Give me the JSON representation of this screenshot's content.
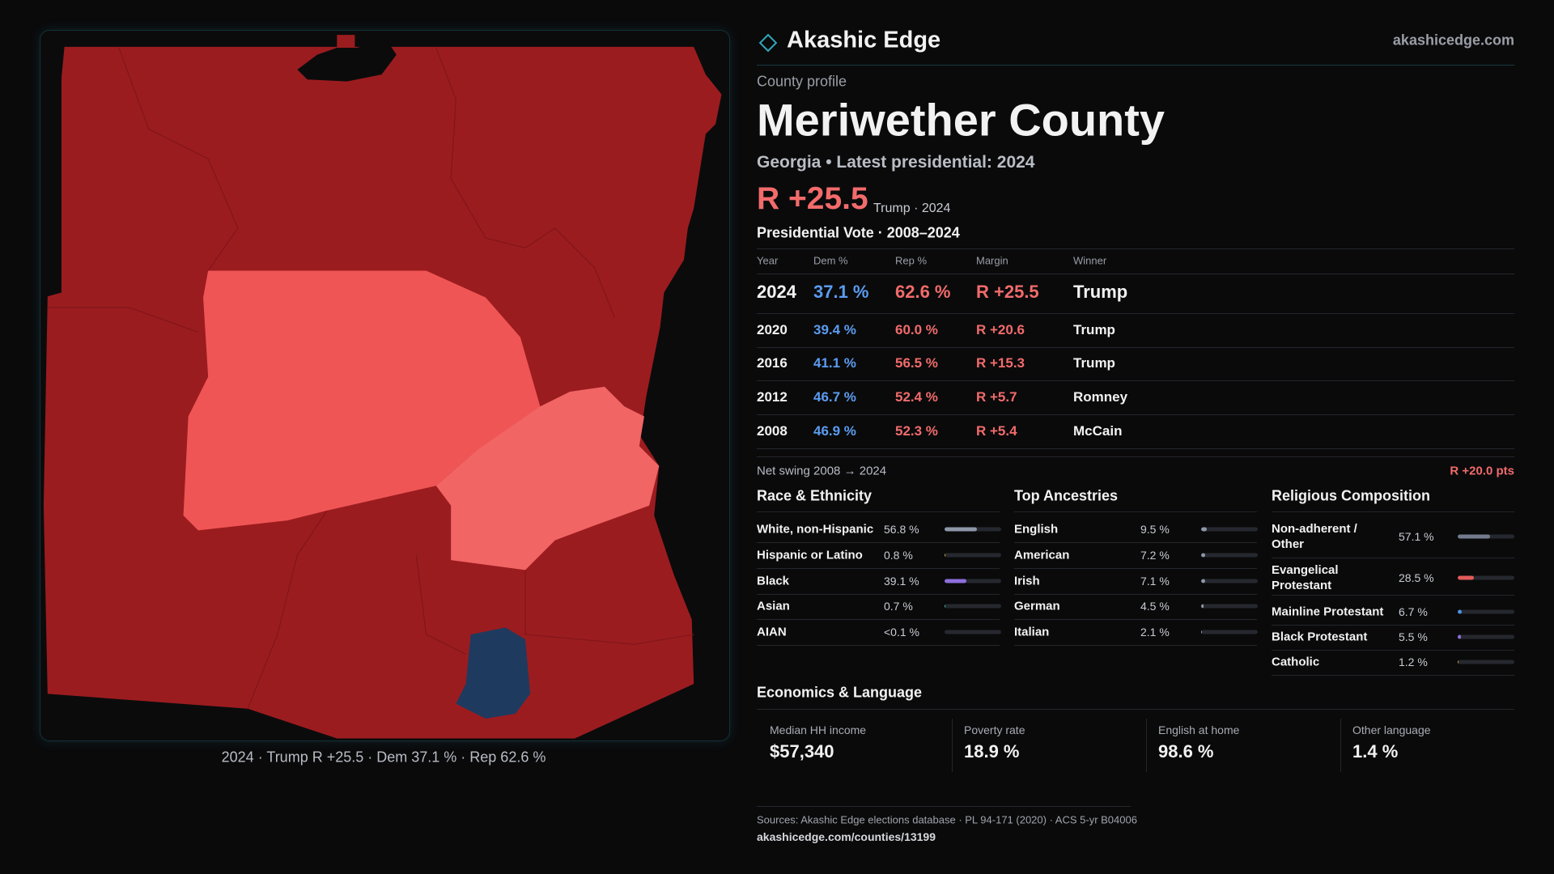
{
  "header": {
    "brand": "Akashic Edge",
    "site": "akashicedge.com"
  },
  "profile": {
    "kicker": "County profile",
    "name": "Meriwether County",
    "subtitle": "Georgia • Latest presidential: 2024",
    "margin": "R +25.5",
    "margin_note": "Trump · 2024"
  },
  "map": {
    "caption": "2024 · Trump R +25.5 · Dem 37.1 % · Rep 62.6 %"
  },
  "vote_table": {
    "title": "Presidential Vote · 2008–2024",
    "columns": [
      "Year",
      "Dem %",
      "Rep %",
      "Margin",
      "Winner"
    ],
    "rows": [
      [
        "2024",
        "37.1 %",
        "62.6 %",
        "R +25.5",
        "Trump"
      ],
      [
        "2020",
        "39.4 %",
        "60.0 %",
        "R +20.6",
        "Trump"
      ],
      [
        "2016",
        "41.1 %",
        "56.5 %",
        "R +15.3",
        "Trump"
      ],
      [
        "2012",
        "46.7 %",
        "52.4 %",
        "R +5.7",
        "Romney"
      ],
      [
        "2008",
        "46.9 %",
        "52.3 %",
        "R +5.4",
        "McCain"
      ]
    ],
    "swing_label": "Net swing 2008 → 2024",
    "swing_value": "R +20.0 pts"
  },
  "race": {
    "title": "Race & Ethnicity",
    "rows": [
      {
        "label": "White, non-Hispanic",
        "value": 56.8,
        "value_label": "56.8 %",
        "color": "#8e97a8"
      },
      {
        "label": "Hispanic or Latino",
        "value": 0.8,
        "value_label": "0.8 %",
        "color": "#c9a23a"
      },
      {
        "label": "Black",
        "value": 39.1,
        "value_label": "39.1 %",
        "color": "#8d6fdc"
      },
      {
        "label": "Asian",
        "value": 0.7,
        "value_label": "0.7 %",
        "color": "#3fb59a"
      },
      {
        "label": "AIAN",
        "value": 0.05,
        "value_label": "<0.1 %",
        "color": "#8e97a8"
      }
    ]
  },
  "ancestry": {
    "title": "Top Ancestries",
    "rows": [
      {
        "label": "English",
        "value": 9.5,
        "value_label": "9.5 %",
        "color": "#8e97a8"
      },
      {
        "label": "American",
        "value": 7.2,
        "value_label": "7.2 %",
        "color": "#8e97a8"
      },
      {
        "label": "Irish",
        "value": 7.1,
        "value_label": "7.1 %",
        "color": "#8e97a8"
      },
      {
        "label": "German",
        "value": 4.5,
        "value_label": "4.5 %",
        "color": "#8e97a8"
      },
      {
        "label": "Italian",
        "value": 2.1,
        "value_label": "2.1 %",
        "color": "#8e97a8"
      }
    ]
  },
  "religion": {
    "title": "Religious Composition",
    "rows": [
      {
        "label": "Non-adherent / Other",
        "value": 57.1,
        "value_label": "57.1 %",
        "color": "#737c8e"
      },
      {
        "label": "Evangelical Protestant",
        "value": 28.5,
        "value_label": "28.5 %",
        "color": "#e35a5a"
      },
      {
        "label": "Mainline Protestant",
        "value": 6.7,
        "value_label": "6.7 %",
        "color": "#4f92e6"
      },
      {
        "label": "Black Protestant",
        "value": 5.5,
        "value_label": "5.5 %",
        "color": "#8d6fdc"
      },
      {
        "label": "Catholic",
        "value": 1.2,
        "value_label": "1.2 %",
        "color": "#c9a23a"
      }
    ]
  },
  "economics": {
    "title": "Economics & Language",
    "items": [
      {
        "label": "Median HH income",
        "value": "$57,340"
      },
      {
        "label": "Poverty rate",
        "value": "18.9 %"
      },
      {
        "label": "English at home",
        "value": "98.6 %"
      },
      {
        "label": "Other language",
        "value": "1.4 %"
      }
    ]
  },
  "footer": {
    "sources": "Sources: Akashic Edge elections database · PL 94-171 (2020) · ACS 5-yr B04006",
    "url": "akashicedge.com/counties/13199"
  }
}
